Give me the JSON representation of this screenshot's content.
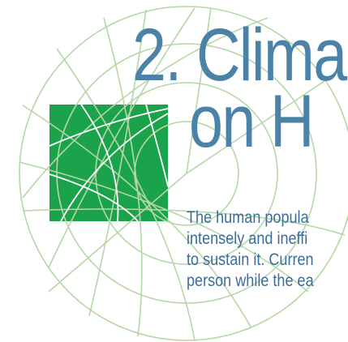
{
  "heading": {
    "line1": "2. Clima",
    "line2": "on H"
  },
  "body": {
    "lines": [
      "The human popula",
      "intensely and ineffi",
      "to sustain it. Curren",
      "person while the ea"
    ]
  },
  "colors": {
    "accent_green": "#1aa34a",
    "globe_lines": "#b5d7a8",
    "heading_blue": "#4a82a8",
    "body_blue": "#3d6d98"
  },
  "icons": [
    "globe-grid-graphic",
    "green-square-block"
  ]
}
